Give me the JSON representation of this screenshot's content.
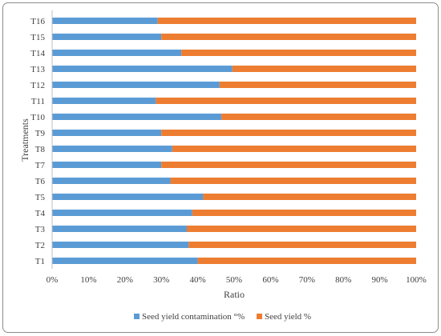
{
  "chart_data": {
    "type": "bar",
    "orientation": "horizontal",
    "stacked": "percent",
    "ylabel": "Treatments",
    "xlabel": "Ratio",
    "categories": [
      "T1",
      "T2",
      "T3",
      "T4",
      "T5",
      "T6",
      "T7",
      "T8",
      "T9",
      "T10",
      "T11",
      "T12",
      "T13",
      "T14",
      "T15",
      "T16"
    ],
    "series": [
      {
        "name": "Seed yield contamination °%",
        "color": "#5b9bd5",
        "values": [
          40,
          37.5,
          37,
          38.5,
          41.5,
          32.5,
          30,
          33,
          30,
          46.5,
          28.5,
          46,
          49.5,
          35.5,
          30,
          29
        ]
      },
      {
        "name": "Seed yield %",
        "color": "#ed7d31",
        "values": [
          60,
          62.5,
          63,
          61.5,
          58.5,
          67.5,
          70,
          67,
          70,
          53.5,
          71.5,
          54,
          50.5,
          64.5,
          70,
          71
        ]
      }
    ],
    "xticks": [
      "0%",
      "10%",
      "20%",
      "30%",
      "40%",
      "50%",
      "60%",
      "70%",
      "80%",
      "90%",
      "100%"
    ],
    "xlim": [
      0,
      100
    ],
    "grid": false,
    "legend": "bottom"
  }
}
